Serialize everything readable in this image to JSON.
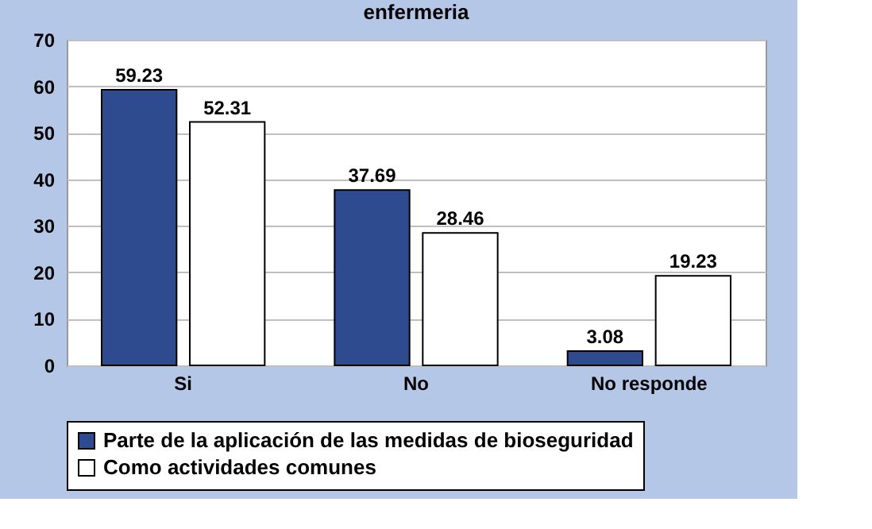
{
  "chart_data": {
    "type": "bar",
    "title": "enfermeria",
    "categories": [
      "Si",
      "No",
      "No responde"
    ],
    "series": [
      {
        "name": "Parte de la aplicación de las medidas de bioseguridad",
        "color": "#2e4b8f",
        "values": [
          59.23,
          37.69,
          3.08
        ]
      },
      {
        "name": "Como actividades comunes",
        "color": "#ffffff",
        "values": [
          52.31,
          28.46,
          19.23
        ]
      }
    ],
    "ylim": [
      0,
      70
    ],
    "yticks": [
      0,
      10,
      20,
      30,
      40,
      50,
      60,
      70
    ],
    "grid": "y",
    "legend": "bottom",
    "data_labels": true
  }
}
